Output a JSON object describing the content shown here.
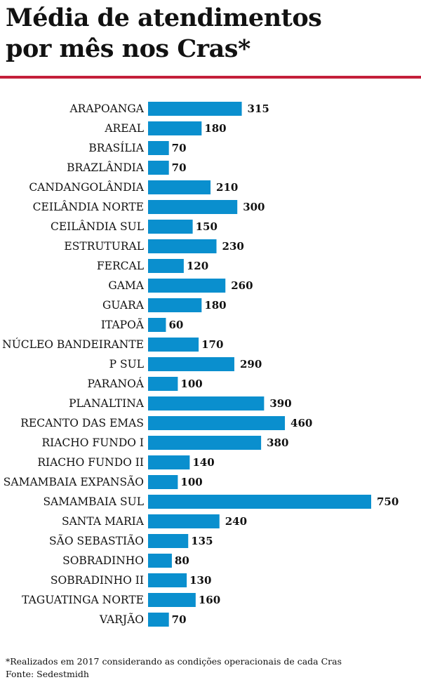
{
  "header": {
    "title_line1": "Média de atendimentos",
    "title_line2": "por mês nos Cras*",
    "rule_color": "#c41f3a"
  },
  "chart_data": {
    "type": "bar",
    "orientation": "horizontal",
    "title": "Média de atendimentos por mês nos Cras*",
    "bar_color": "#0a8fce",
    "grid": false,
    "categories": [
      "ARAPOANGA",
      "AREAL",
      "BRASÍLIA",
      "BRAZLÂNDIA",
      "CANDANGOLÂNDIA",
      "CEILÂNDIA NORTE",
      "CEILÂNDIA SUL",
      "ESTRUTURAL",
      "FERCAL",
      "GAMA",
      "GUARA",
      "ITAPOÃ",
      "NÚCLEO BANDEIRANTE",
      "P SUL",
      "PARANOÁ",
      "PLANALTINA",
      "RECANTO DAS EMAS",
      "RIACHO FUNDO I",
      "RIACHO FUNDO II",
      "SAMAMBAIA EXPANSÃO",
      "SAMAMBAIA SUL",
      "SANTA MARIA",
      "SÃO SEBASTIÃO",
      "SOBRADINHO",
      "SOBRADINHO II",
      "TAGUATINGA NORTE",
      "VARJÃO"
    ],
    "values": [
      315,
      180,
      70,
      70,
      210,
      300,
      150,
      230,
      120,
      260,
      180,
      60,
      170,
      290,
      100,
      390,
      460,
      380,
      140,
      100,
      750,
      240,
      135,
      80,
      130,
      160,
      70
    ],
    "xlim": [
      0,
      750
    ]
  },
  "footer": {
    "note": "*Realizados em 2017 considerando as condições operacionais de cada Cras",
    "source": "Fonte: Sedestmidh"
  }
}
